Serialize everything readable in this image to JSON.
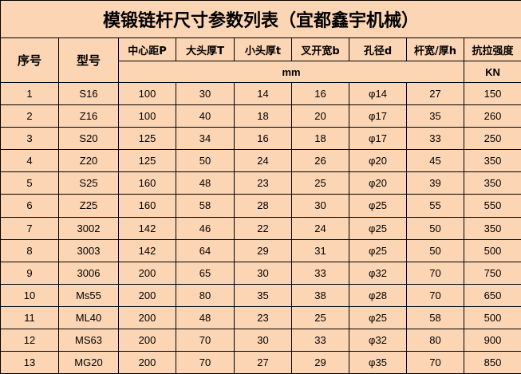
{
  "title": "模锻链杆尺寸参数列表（宜都鑫宇机械）",
  "headers": {
    "index": "序号",
    "model": "型号",
    "columns": [
      "中心距P",
      "大头厚T",
      "小头厚t",
      "叉开宽b",
      "孔径d",
      "杆宽/厚h",
      "抗拉强度"
    ],
    "unit_mm": "mm",
    "unit_kn": "KN"
  },
  "rows": [
    [
      "1",
      "S16",
      "100",
      "30",
      "14",
      "16",
      "φ14",
      "27",
      "150"
    ],
    [
      "2",
      "Z16",
      "100",
      "40",
      "18",
      "20",
      "φ17",
      "35",
      "260"
    ],
    [
      "3",
      "S20",
      "125",
      "34",
      "16",
      "18",
      "φ17",
      "33",
      "250"
    ],
    [
      "4",
      "Z20",
      "125",
      "50",
      "24",
      "26",
      "φ20",
      "45",
      "350"
    ],
    [
      "5",
      "S25",
      "160",
      "48",
      "23",
      "25",
      "φ20",
      "39",
      "350"
    ],
    [
      "6",
      "Z25",
      "160",
      "58",
      "28",
      "30",
      "φ25",
      "55",
      "550"
    ],
    [
      "7",
      "3002",
      "142",
      "46",
      "22",
      "24",
      "φ25",
      "50",
      "350"
    ],
    [
      "8",
      "3003",
      "142",
      "64",
      "29",
      "31",
      "φ25",
      "50",
      "500"
    ],
    [
      "9",
      "3006",
      "200",
      "65",
      "30",
      "33",
      "φ32",
      "70",
      "750"
    ],
    [
      "10",
      "Ms55",
      "200",
      "80",
      "35",
      "38",
      "φ28",
      "70",
      "650"
    ],
    [
      "11",
      "ML40",
      "200",
      "48",
      "23",
      "25",
      "φ25",
      "58",
      "500"
    ],
    [
      "12",
      "MS63",
      "200",
      "70",
      "30",
      "33",
      "φ32",
      "80",
      "900"
    ],
    [
      "13",
      "MG20",
      "200",
      "70",
      "27",
      "29",
      "φ35",
      "70",
      "850"
    ]
  ],
  "colors": {
    "background": "#FCD5B4",
    "border": "#000000"
  }
}
